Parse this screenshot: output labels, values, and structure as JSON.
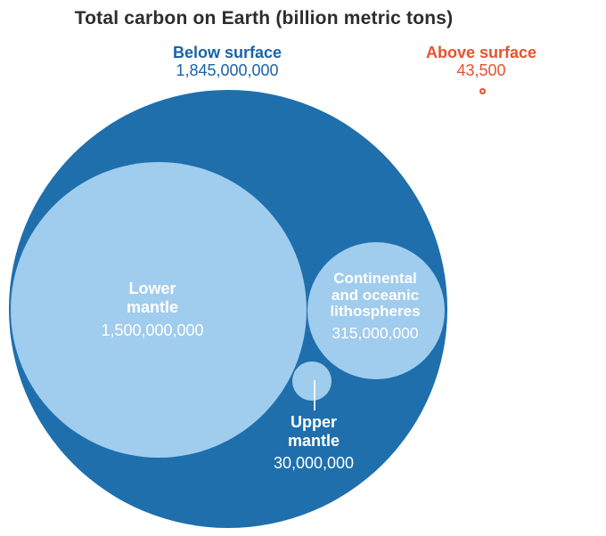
{
  "title": "Total carbon on Earth (billion metric tons)",
  "groups": {
    "below": {
      "label": "Below surface",
      "value": "1,845,000,000"
    },
    "above": {
      "label": "Above surface",
      "value": "43,500"
    }
  },
  "bubbles": {
    "lower": {
      "name_lines": [
        "Lower",
        "mantle"
      ],
      "value": "1,500,000,000"
    },
    "continental": {
      "name_lines": [
        "Continental",
        "and oceanic",
        "lithospheres"
      ],
      "value": "315,000,000"
    },
    "upper": {
      "name_lines": [
        "Upper",
        "mantle"
      ],
      "value": "30,000,000"
    }
  },
  "colors": {
    "below_circle_blue": "#1F6FAD",
    "inner_circle_light_blue": "#A0CCEE",
    "below_label_blue": "#1A63A6",
    "above_orange": "#E6522C",
    "title_gray": "#2D2D2D",
    "bubble_text_white": "#FFFFFF"
  },
  "chart_data": {
    "type": "bubble",
    "title": "Total carbon on Earth (billion metric tons)",
    "unit": "billion metric tons",
    "legend_position": "none",
    "grid": false,
    "series": [
      {
        "name": "Below surface",
        "value": 1845000000,
        "color": "#1F6FAD",
        "children": [
          {
            "name": "Lower mantle",
            "value": 1500000000,
            "color": "#A0CCEE"
          },
          {
            "name": "Continental and oceanic lithospheres",
            "value": 315000000,
            "color": "#A0CCEE"
          },
          {
            "name": "Upper mantle",
            "value": 30000000,
            "color": "#A0CCEE"
          }
        ]
      },
      {
        "name": "Above surface",
        "value": 43500,
        "color": "#E6522C",
        "children": []
      }
    ]
  }
}
